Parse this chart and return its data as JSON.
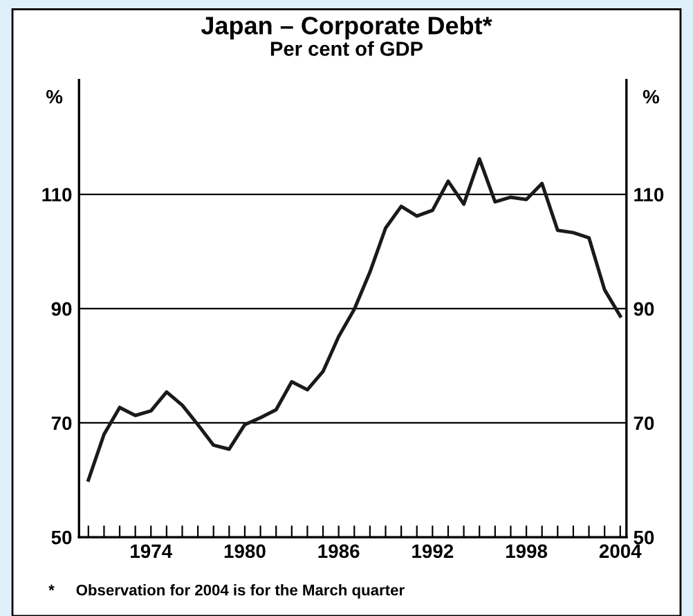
{
  "chart_data": {
    "type": "line",
    "title": "Japan – Corporate Debt*",
    "subtitle": "Per cent of GDP",
    "ylabel": "%",
    "y2label": "%",
    "x": [
      1970,
      1971,
      1972,
      1973,
      1974,
      1975,
      1976,
      1977,
      1978,
      1979,
      1980,
      1981,
      1982,
      1983,
      1984,
      1985,
      1986,
      1987,
      1988,
      1989,
      1990,
      1991,
      1992,
      1993,
      1994,
      1995,
      1996,
      1997,
      1998,
      1999,
      2000,
      2001,
      2002,
      2003,
      2004
    ],
    "series": [
      {
        "color": "#1a1a1a",
        "values": [
          60,
          68,
          72.7,
          71.3,
          72.1,
          75.4,
          73.1,
          69.7,
          66.1,
          65.4,
          69.7,
          70.9,
          72.3,
          77.2,
          75.8,
          79,
          85.1,
          89.9,
          96.4,
          104.1,
          107.9,
          106.2,
          107.2,
          112.3,
          108.3,
          116.2,
          108.7,
          109.5,
          109.1,
          111.9,
          103.7,
          103.3,
          102.4,
          93.3,
          88.7
        ]
      }
    ],
    "xlim": [
      1969.4,
      2004.4
    ],
    "xticks": [
      {
        "value": 1970,
        "label": null
      },
      {
        "value": 1971,
        "label": null
      },
      {
        "value": 1972,
        "label": null
      },
      {
        "value": 1973,
        "label": null
      },
      1974,
      {
        "value": 1975,
        "label": null
      },
      {
        "value": 1976,
        "label": null
      },
      {
        "value": 1977,
        "label": null
      },
      {
        "value": 1978,
        "label": null
      },
      {
        "value": 1979,
        "label": null
      },
      1980,
      {
        "value": 1981,
        "label": null
      },
      {
        "value": 1982,
        "label": null
      },
      {
        "value": 1983,
        "label": null
      },
      {
        "value": 1984,
        "label": null
      },
      {
        "value": 1985,
        "label": null
      },
      1986,
      {
        "value": 1987,
        "label": null
      },
      {
        "value": 1988,
        "label": null
      },
      {
        "value": 1989,
        "label": null
      },
      {
        "value": 1990,
        "label": null
      },
      {
        "value": 1991,
        "label": null
      },
      1992,
      {
        "value": 1993,
        "label": null
      },
      {
        "value": 1994,
        "label": null
      },
      {
        "value": 1995,
        "label": null
      },
      {
        "value": 1996,
        "label": null
      },
      {
        "value": 1997,
        "label": null
      },
      1998,
      {
        "value": 1999,
        "label": null
      },
      {
        "value": 2000,
        "label": null
      },
      {
        "value": 2001,
        "label": null
      },
      {
        "value": 2002,
        "label": null
      },
      {
        "value": 2003,
        "label": null
      },
      2004
    ],
    "ylim": [
      50,
      130
    ],
    "yticks": [
      50,
      70,
      90,
      110
    ],
    "y2lim": [
      50,
      130
    ],
    "y2ticks": [
      50,
      70,
      90,
      110
    ],
    "grid": "y",
    "legend": false,
    "marker": "none",
    "line_style": "solid",
    "annotations": [
      "*     Observation for 2004 is for the March quarter"
    ]
  }
}
